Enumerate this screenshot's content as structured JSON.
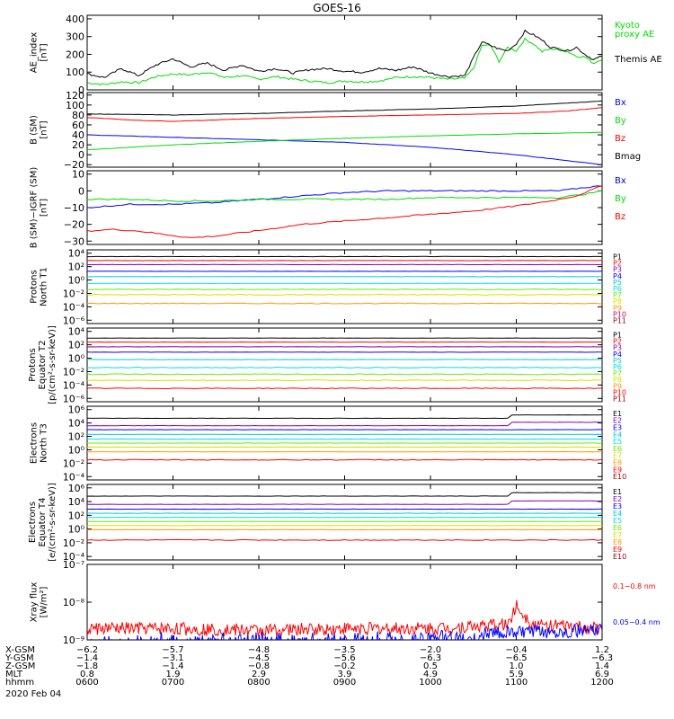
{
  "title": "GOES-16",
  "colors": {
    "black": "#000000",
    "red": "#ff0000",
    "green": "#00dd00",
    "blue": "#0000ff",
    "purple": "#8800aa",
    "cyan": "#00cccc",
    "aqua": "#00e0e0",
    "lime": "#66ee00",
    "yellow": "#dddd00",
    "orange": "#ff9900",
    "darkorange": "#ff6600",
    "magenta": "#cc0077",
    "darkred": "#990000"
  },
  "chart_data": [
    {
      "type": "line",
      "id": "ae",
      "ylabel": [
        "AE_index",
        "[nT]"
      ],
      "ticks": [
        "400",
        "300",
        "200",
        "100",
        "0"
      ],
      "tick_values": [
        400,
        300,
        200,
        100,
        0
      ],
      "ylim": [
        0,
        420
      ],
      "series": [
        {
          "name": "Kyoto proxy AE",
          "label_lines": [
            "Kyoto",
            "proxy AE"
          ],
          "color": "green",
          "x": [
            6.0,
            6.2,
            6.4,
            6.6,
            6.8,
            7.0,
            7.2,
            7.4,
            7.6,
            7.8,
            8.0,
            8.2,
            8.4,
            8.6,
            8.8,
            9.0,
            9.2,
            9.4,
            9.6,
            9.8,
            10.0,
            10.2,
            10.4,
            10.5,
            10.6,
            10.7,
            10.8,
            10.9,
            11.0,
            11.1,
            11.2,
            11.3,
            11.4,
            11.5,
            11.6,
            11.7,
            11.8,
            11.9,
            12.0
          ],
          "values": [
            40,
            30,
            45,
            40,
            75,
            90,
            85,
            100,
            70,
            80,
            60,
            75,
            60,
            50,
            40,
            50,
            45,
            50,
            70,
            75,
            70,
            60,
            65,
            120,
            250,
            250,
            160,
            240,
            220,
            285,
            260,
            215,
            230,
            230,
            215,
            190,
            185,
            150,
            175
          ]
        },
        {
          "name": "Themis AE",
          "label_lines": [
            "Themis AE"
          ],
          "color": "black",
          "x": [
            6.0,
            6.2,
            6.4,
            6.6,
            6.8,
            7.0,
            7.2,
            7.4,
            7.6,
            7.8,
            8.0,
            8.2,
            8.4,
            8.6,
            8.8,
            9.0,
            9.2,
            9.4,
            9.6,
            9.8,
            10.0,
            10.2,
            10.4,
            10.5,
            10.6,
            10.7,
            10.8,
            10.9,
            11.0,
            11.1,
            11.2,
            11.3,
            11.4,
            11.5,
            11.6,
            11.7,
            11.8,
            11.9,
            12.0
          ],
          "values": [
            90,
            70,
            120,
            80,
            140,
            175,
            130,
            150,
            110,
            140,
            105,
            120,
            95,
            115,
            120,
            105,
            100,
            120,
            110,
            130,
            95,
            75,
            80,
            180,
            270,
            250,
            230,
            220,
            260,
            330,
            310,
            280,
            240,
            230,
            220,
            240,
            200,
            170,
            190
          ]
        }
      ]
    },
    {
      "type": "line",
      "id": "bsm",
      "ylabel": [
        "B (SM)",
        "[nT]"
      ],
      "ticks": [
        "120",
        "100",
        "80",
        "60",
        "40",
        "20",
        "0",
        "−20"
      ],
      "tick_values": [
        120,
        100,
        80,
        60,
        40,
        20,
        0,
        -20
      ],
      "ylim": [
        -25,
        125
      ],
      "series": [
        {
          "name": "Bx",
          "color": "blue",
          "x": [
            6,
            7,
            8,
            9,
            10,
            11,
            12
          ],
          "values": [
            40,
            35,
            30,
            25,
            15,
            0,
            -20
          ]
        },
        {
          "name": "By",
          "color": "green",
          "x": [
            6,
            7,
            8,
            9,
            10,
            11,
            12
          ],
          "values": [
            10,
            20,
            27,
            33,
            38,
            42,
            45
          ]
        },
        {
          "name": "Bz",
          "color": "red",
          "x": [
            6,
            6.5,
            7,
            7.5,
            8,
            9,
            10,
            11,
            11.6,
            12
          ],
          "values": [
            75,
            70,
            67,
            70,
            73,
            77,
            80,
            83,
            88,
            95
          ]
        },
        {
          "name": "Bmag",
          "color": "black",
          "x": [
            6,
            7,
            8,
            9,
            10,
            11,
            12
          ],
          "values": [
            82,
            80,
            83,
            88,
            92,
            98,
            108
          ]
        }
      ]
    },
    {
      "type": "line",
      "id": "bigrf",
      "ylabel": [
        "B (SM)−IGRF (SM)",
        "[nT]"
      ],
      "ticks": [
        "10",
        "0",
        "−10",
        "−20",
        "−30"
      ],
      "tick_values": [
        10,
        0,
        -10,
        -20,
        -30
      ],
      "ylim": [
        -32,
        12
      ],
      "series": [
        {
          "name": "Bx",
          "color": "blue",
          "x": [
            6,
            6.5,
            7,
            7.5,
            8,
            8.5,
            9,
            9.5,
            10,
            10.5,
            11,
            11.5,
            11.8,
            12
          ],
          "values": [
            -10,
            -8,
            -8,
            -7,
            -5,
            -3,
            -1,
            0,
            0,
            0,
            0,
            0,
            2,
            3
          ]
        },
        {
          "name": "By",
          "color": "green",
          "x": [
            6,
            6.5,
            7,
            7.5,
            8,
            8.5,
            9,
            9.5,
            10,
            10.5,
            11,
            11.5,
            11.8,
            12
          ],
          "values": [
            -5,
            -5,
            -6,
            -6,
            -5,
            -5,
            -5,
            -5,
            -4,
            -4,
            -4,
            -4,
            -2,
            0
          ]
        },
        {
          "name": "Bz",
          "color": "red",
          "x": [
            6,
            6.3,
            6.6,
            6.9,
            7.2,
            7.5,
            7.8,
            8.1,
            8.5,
            9,
            9.5,
            10,
            10.5,
            11,
            11.4,
            11.7,
            12
          ],
          "values": [
            -24,
            -23,
            -24,
            -26,
            -28,
            -27,
            -25,
            -23,
            -20,
            -18,
            -16,
            -14,
            -12,
            -9,
            -6,
            -3,
            3
          ]
        }
      ]
    },
    {
      "type": "line",
      "id": "pn",
      "log": true,
      "ylabel": [
        "Protons",
        "North T1"
      ],
      "ticks": [
        "10⁴",
        "10²",
        "10⁰",
        "10⁻²",
        "10⁻⁴",
        "10⁻⁶"
      ],
      "tick_values": [
        4,
        2,
        0,
        -2,
        -4,
        -6
      ],
      "ylim": [
        -6.5,
        4.5
      ],
      "series": [
        {
          "name": "P1",
          "color": "black",
          "level": 3.5
        },
        {
          "name": "P2",
          "color": "red",
          "level": 2.9
        },
        {
          "name": "P3",
          "color": "purple",
          "level": 2.3
        },
        {
          "name": "P4",
          "color": "blue",
          "level": 1.3
        },
        {
          "name": "P5",
          "color": "cyan",
          "level": 0.5
        },
        {
          "name": "P6",
          "color": "aqua",
          "level": -0.5
        },
        {
          "name": "P7",
          "color": "lime",
          "level": -1.4
        },
        {
          "name": "P8",
          "color": "yellow",
          "level": -2.2
        },
        {
          "name": "P9",
          "color": "orange",
          "level": -3.5
        },
        {
          "name": "P10",
          "color": "magenta",
          "level": null
        },
        {
          "name": "P11",
          "color": "darkred",
          "level": null
        }
      ]
    },
    {
      "type": "line",
      "id": "pe",
      "log": true,
      "ylabel": [
        "Protons",
        "Equator T2",
        "[p/(cm²-s-sr-keV)]"
      ],
      "ticks": [
        "10⁴",
        "10²",
        "10⁰",
        "10⁻²",
        "10⁻⁴",
        "10⁻⁶"
      ],
      "tick_values": [
        4,
        2,
        0,
        -2,
        -4,
        -6
      ],
      "ylim": [
        -6.5,
        4.5
      ],
      "series": [
        {
          "name": "P1",
          "color": "black",
          "level": 3.0
        },
        {
          "name": "P2",
          "color": "red",
          "level": 2.4
        },
        {
          "name": "P3",
          "color": "purple",
          "level": 1.7
        },
        {
          "name": "P4",
          "color": "blue",
          "level": 0.9
        },
        {
          "name": "P5",
          "color": "cyan",
          "level": -0.2
        },
        {
          "name": "P6",
          "color": "aqua",
          "level": -1.4
        },
        {
          "name": "P7",
          "color": "lime",
          "level": -2.4
        },
        {
          "name": "P8",
          "color": "yellow",
          "level": -3.3
        },
        {
          "name": "P9",
          "color": "orange",
          "level": null
        },
        {
          "name": "P10",
          "color": "red",
          "level": -4.5
        },
        {
          "name": "P11",
          "color": "darkred",
          "level": null
        }
      ]
    },
    {
      "type": "line",
      "id": "en",
      "log": true,
      "ylabel": [
        "Electrons",
        "North T3"
      ],
      "ticks": [
        "10⁶",
        "10⁴",
        "10²",
        "10⁰",
        "10⁻²",
        "10⁻⁴"
      ],
      "tick_values": [
        6,
        4,
        2,
        0,
        -2,
        -4
      ],
      "ylim": [
        -4.5,
        6.5
      ],
      "series": [
        {
          "name": "E1",
          "color": "black",
          "level": 4.7
        },
        {
          "name": "E2",
          "color": "purple",
          "level": 3.6
        },
        {
          "name": "E3",
          "color": "blue",
          "level": 3.0
        },
        {
          "name": "E4",
          "color": "cyan",
          "level": 2.3
        },
        {
          "name": "E5",
          "color": "aqua",
          "level": 1.6
        },
        {
          "name": "E6",
          "color": "lime",
          "level": 1.0
        },
        {
          "name": "E7",
          "color": "yellow",
          "level": 0.4
        },
        {
          "name": "E8",
          "color": "orange",
          "level": -0.3
        },
        {
          "name": "E9",
          "color": "red",
          "level": -1.5
        },
        {
          "name": "E10",
          "color": "darkred",
          "level": null
        }
      ]
    },
    {
      "type": "line",
      "id": "ee",
      "log": true,
      "ylabel": [
        "Electrons",
        "Equator T4",
        "[e/(cm²-s-sr-keV)]"
      ],
      "ticks": [
        "10⁶",
        "10⁴",
        "10²",
        "10⁰",
        "10⁻²",
        "10⁻⁴"
      ],
      "tick_values": [
        6,
        4,
        2,
        0,
        -2,
        -4
      ],
      "ylim": [
        -4.5,
        6.5
      ],
      "series": [
        {
          "name": "E1",
          "color": "black",
          "level": 4.8
        },
        {
          "name": "E2",
          "color": "purple",
          "level": 3.6
        },
        {
          "name": "E3",
          "color": "blue",
          "level": 2.9
        },
        {
          "name": "E4",
          "color": "cyan",
          "level": 2.3
        },
        {
          "name": "E5",
          "color": "aqua",
          "level": 1.7
        },
        {
          "name": "E6",
          "color": "lime",
          "level": 1.1
        },
        {
          "name": "E7",
          "color": "yellow",
          "level": 0.5
        },
        {
          "name": "E8",
          "color": "orange",
          "level": -0.1
        },
        {
          "name": "E9",
          "color": "red",
          "level": -1.6
        },
        {
          "name": "E10",
          "color": "darkred",
          "level": null
        }
      ]
    },
    {
      "type": "line",
      "id": "xray",
      "log": true,
      "ylabel": [
        "Xray flux",
        "[W/m²]"
      ],
      "ticks": [
        "10⁻⁷",
        "10⁻⁸",
        "10⁻⁹"
      ],
      "tick_values": [
        -7,
        -8,
        -9
      ],
      "ylim": [
        -9,
        -7
      ],
      "series": [
        {
          "name": "0.1−0.8 nm",
          "color": "red",
          "x": [
            6,
            7,
            8,
            9,
            10,
            10.8,
            10.9,
            11,
            11.2,
            12
          ],
          "values": [
            -8.7,
            -8.7,
            -8.75,
            -8.7,
            -8.7,
            -8.6,
            -8.6,
            -8.1,
            -8.6,
            -8.7
          ]
        },
        {
          "name": "0.05−0.4 nm",
          "color": "blue",
          "x": [
            6,
            7,
            8,
            9,
            10,
            11,
            12
          ],
          "values": [
            -9.0,
            -8.95,
            -8.95,
            -8.9,
            -8.9,
            -8.8,
            -8.75
          ]
        }
      ]
    }
  ],
  "time_axis": {
    "row_labels": [
      "X-GSM",
      "Y-GSM",
      "Z-GSM",
      "MLT",
      "hhmm"
    ],
    "columns": [
      [
        "−6.2",
        "−1.4",
        "−1.8",
        "0.8",
        "0600"
      ],
      [
        "−5.7",
        "−3.1",
        "−1.4",
        "1.9",
        "0700"
      ],
      [
        "−4.8",
        "−4.5",
        "−0.8",
        "2.9",
        "0800"
      ],
      [
        "−3.5",
        "−5.6",
        "−0.2",
        "3.9",
        "0900"
      ],
      [
        "−2.0",
        "−6.3",
        "0.5",
        "4.9",
        "1000"
      ],
      [
        "−0.4",
        "−6.5",
        "1.0",
        "5.9",
        "1100"
      ],
      [
        "1.2",
        "−6.3",
        "1.4",
        "6.9",
        "1200"
      ]
    ],
    "x_values": [
      6,
      7,
      8,
      9,
      10,
      11,
      12
    ],
    "date": "2020 Feb 04"
  }
}
